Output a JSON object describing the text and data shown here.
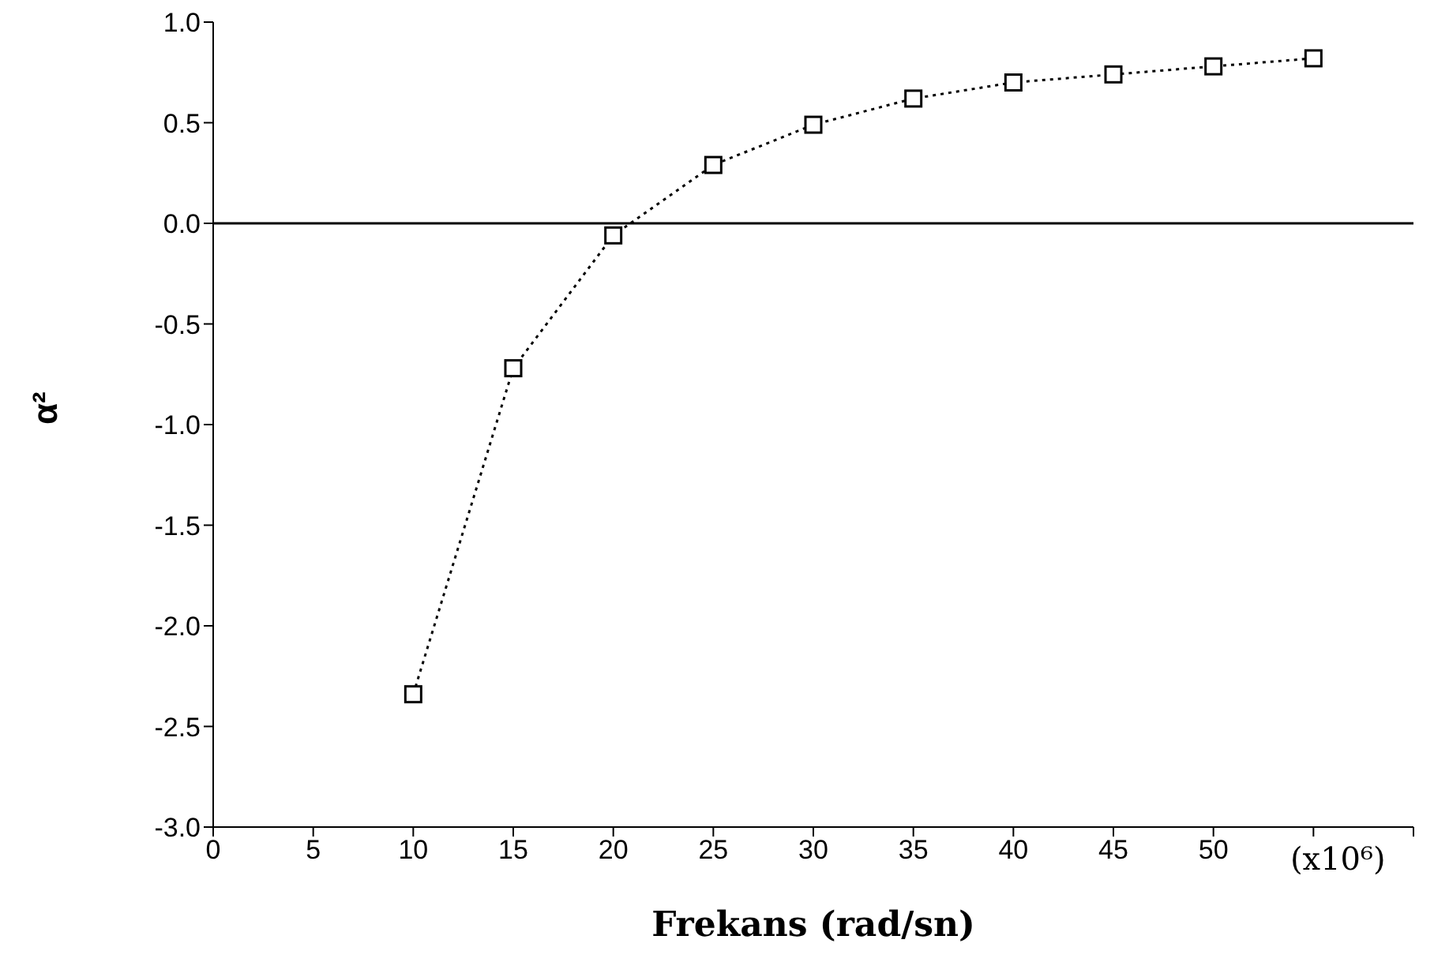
{
  "chart_data": {
    "type": "line",
    "xlabel": "Frekans (rad/sn)",
    "ylabel": "α²",
    "annotations": [
      "(x10⁶)"
    ],
    "x": [
      10,
      15,
      20,
      25,
      30,
      35,
      40,
      45,
      50,
      55
    ],
    "series": [
      {
        "color": "#000000",
        "values": [
          -2.34,
          -0.72,
          -0.06,
          0.29,
          0.49,
          0.62,
          0.7,
          0.74,
          0.78,
          0.82
        ]
      }
    ],
    "xlim": [
      0,
      60
    ],
    "xticks": [
      0,
      5,
      10,
      15,
      20,
      25,
      30,
      35,
      40,
      45,
      50,
      {
        "value": 55,
        "label": null
      },
      {
        "value": 60,
        "label": null
      }
    ],
    "ylim": [
      -3,
      1
    ],
    "yticks": [
      {
        "value": -3,
        "label": "-3.0"
      },
      {
        "value": -2.5,
        "label": "-2.5"
      },
      {
        "value": -2,
        "label": "-2.0"
      },
      {
        "value": -1.5,
        "label": "-1.5"
      },
      {
        "value": -1,
        "label": "-1.0"
      },
      {
        "value": -0.5,
        "label": "-0.5"
      },
      {
        "value": 0,
        "label": "0.0"
      },
      {
        "value": 0.5,
        "label": "0.5"
      },
      {
        "value": 1,
        "label": "1.0"
      }
    ],
    "ref_lines": [
      {
        "axis": "y",
        "value": 0,
        "color": "#000000"
      }
    ],
    "marker": "square",
    "line_style": "dotted",
    "grid": false,
    "legend": false
  }
}
